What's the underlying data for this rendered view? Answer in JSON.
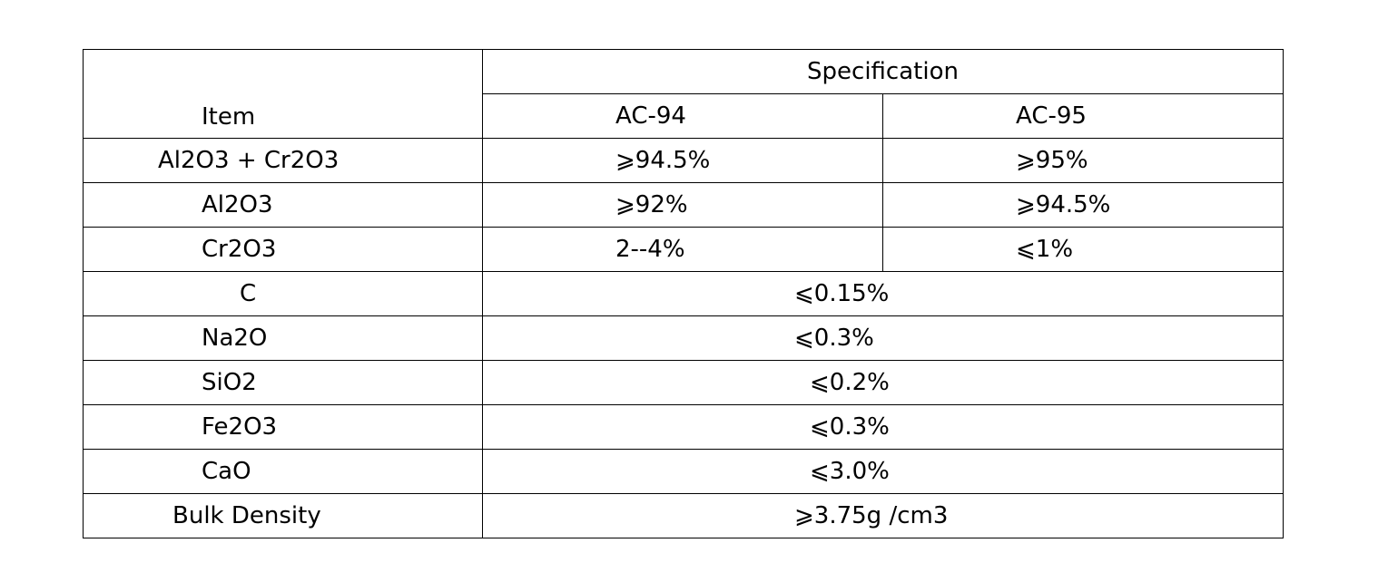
{
  "table": {
    "item_header": "Item",
    "spec_header": "Specification",
    "grades": [
      "AC-94",
      "AC-95"
    ],
    "rows": [
      {
        "item": "Al2O3 + Cr2O3",
        "ac94": "⩾94.5%",
        "ac95": "⩾95%"
      },
      {
        "item": "Al2O3",
        "ac94": "⩾92%",
        "ac95": "⩾94.5%"
      },
      {
        "item": "Cr2O3",
        "ac94": "2--4%",
        "ac95": "⩽1%"
      },
      {
        "item": "C",
        "value": "⩽0.15%"
      },
      {
        "item": "Na2O",
        "value": "⩽0.3%"
      },
      {
        "item": "SiO2",
        "value": "⩽0.2%"
      },
      {
        "item": "Fe2O3",
        "value": "⩽0.3%"
      },
      {
        "item": "CaO",
        "value": "⩽3.0%"
      },
      {
        "item": "Bulk Density",
        "value": "⩾3.75g /cm3"
      }
    ]
  }
}
